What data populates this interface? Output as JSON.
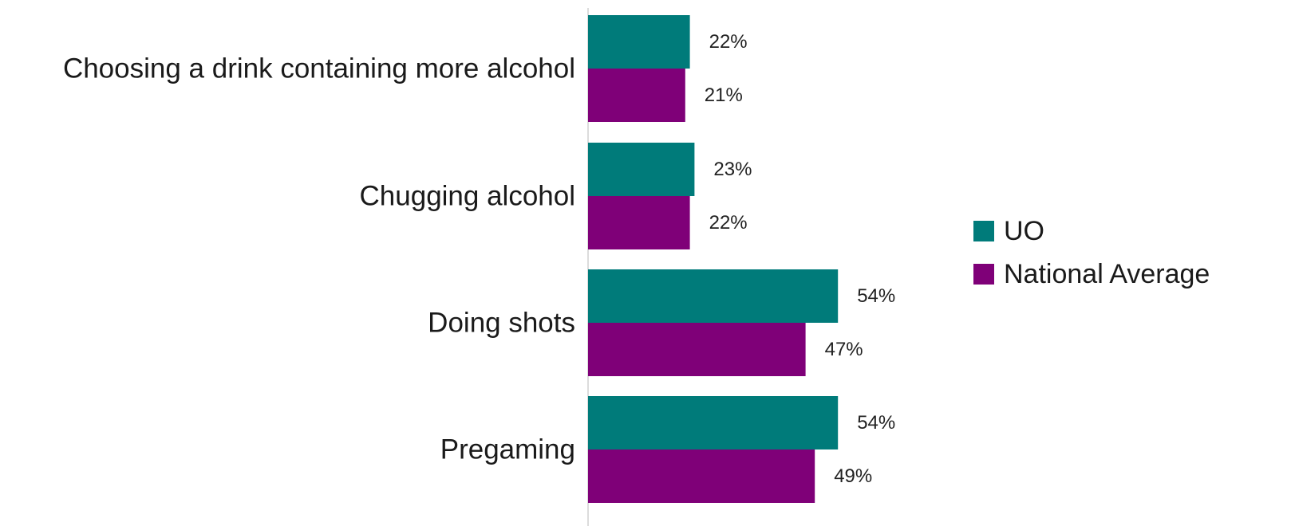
{
  "chart_data": {
    "type": "bar",
    "orientation": "horizontal",
    "categories": [
      "Choosing a drink containing more alcohol",
      "Chugging alcohol",
      "Doing shots",
      "Pregaming"
    ],
    "series": [
      {
        "name": "UO",
        "values": [
          22,
          23,
          54,
          54
        ],
        "labels": [
          "22%",
          "23%",
          "54%",
          "54%"
        ],
        "color": "#007b7a"
      },
      {
        "name": "National Average",
        "values": [
          21,
          22,
          47,
          49
        ],
        "labels": [
          "21%",
          "22%",
          "47%",
          "49%"
        ],
        "color": "#7f0078"
      }
    ],
    "xlim": [
      0,
      100
    ],
    "grid": false,
    "legend_position": "right"
  }
}
